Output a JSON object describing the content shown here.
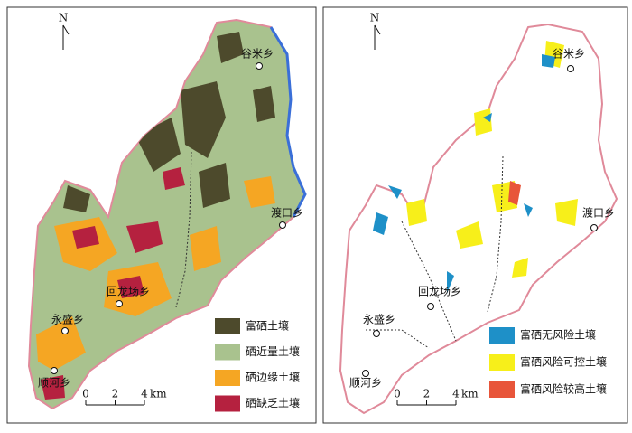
{
  "panels": [
    {
      "north": "N",
      "towns": [
        "谷米乡",
        "渡口乡",
        "回龙场乡",
        "永盛乡",
        "顺河乡"
      ],
      "legend": [
        {
          "label": "富硒土壤",
          "color": "#4d4a2c"
        },
        {
          "label": "硒近量土壤",
          "color": "#a9c28e"
        },
        {
          "label": "硒边缘土壤",
          "color": "#f5a623"
        },
        {
          "label": "硒缺乏土壤",
          "color": "#b5213f"
        }
      ],
      "scale": {
        "ticks": [
          0,
          2,
          4
        ],
        "unit": "km"
      }
    },
    {
      "north": "N",
      "towns": [
        "谷米乡",
        "渡口乡",
        "回龙场乡",
        "永盛乡",
        "顺河乡"
      ],
      "legend": [
        {
          "label": "富硒无风险土壤",
          "color": "#1e90c8"
        },
        {
          "label": "富硒风险可控土壤",
          "color": "#f7ef1a"
        },
        {
          "label": "富硒风险较高土壤",
          "color": "#e8553a"
        }
      ],
      "scale": {
        "ticks": [
          0,
          2,
          4
        ],
        "unit": "km"
      }
    }
  ]
}
